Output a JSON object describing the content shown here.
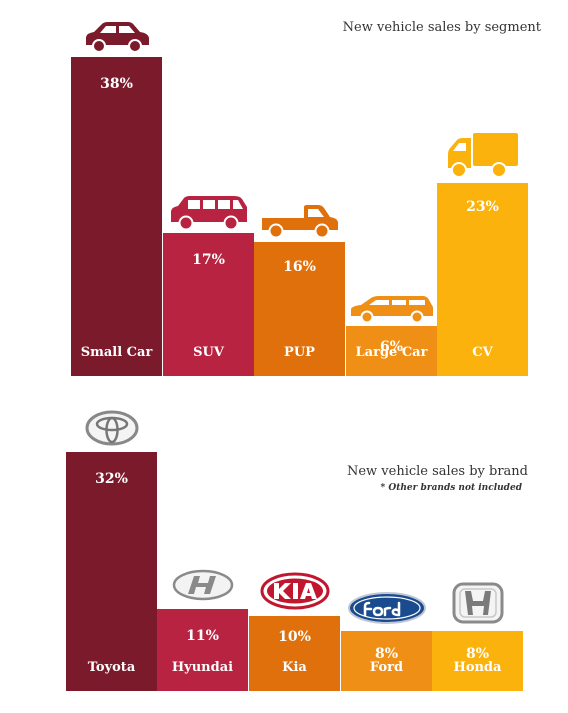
{
  "chart_data": [
    {
      "type": "bar",
      "title": "New vehicle sales by segment",
      "categories": [
        "Small Car",
        "SUV",
        "PUP",
        "Large Car",
        "CV"
      ],
      "values": [
        38,
        17,
        16,
        6,
        23
      ],
      "value_labels": [
        "38%",
        "17%",
        "16%",
        "6%",
        "23%"
      ],
      "colors": [
        "#7b1a2b",
        "#b72340",
        "#e0700c",
        "#f08f15",
        "#fcb20c"
      ],
      "icons": [
        "small-car-icon",
        "suv-icon",
        "pickup-truck-icon",
        "station-wagon-icon",
        "delivery-truck-icon"
      ],
      "ylim": [
        0,
        38
      ]
    },
    {
      "type": "bar",
      "title": "New vehicle sales by brand",
      "note": "* Other brands not included",
      "categories": [
        "Toyota",
        "Hyundai",
        "Kia",
        "Ford",
        "Honda"
      ],
      "values": [
        32,
        11,
        10,
        8,
        8
      ],
      "value_labels": [
        "32%",
        "11%",
        "10%",
        "8%",
        "8%"
      ],
      "colors": [
        "#7b1a2b",
        "#b72340",
        "#e0700c",
        "#f08f15",
        "#fcb20c"
      ],
      "icons": [
        "toyota-logo",
        "hyundai-logo",
        "kia-logo",
        "ford-logo",
        "honda-logo"
      ],
      "ylim": [
        0,
        32
      ]
    }
  ]
}
